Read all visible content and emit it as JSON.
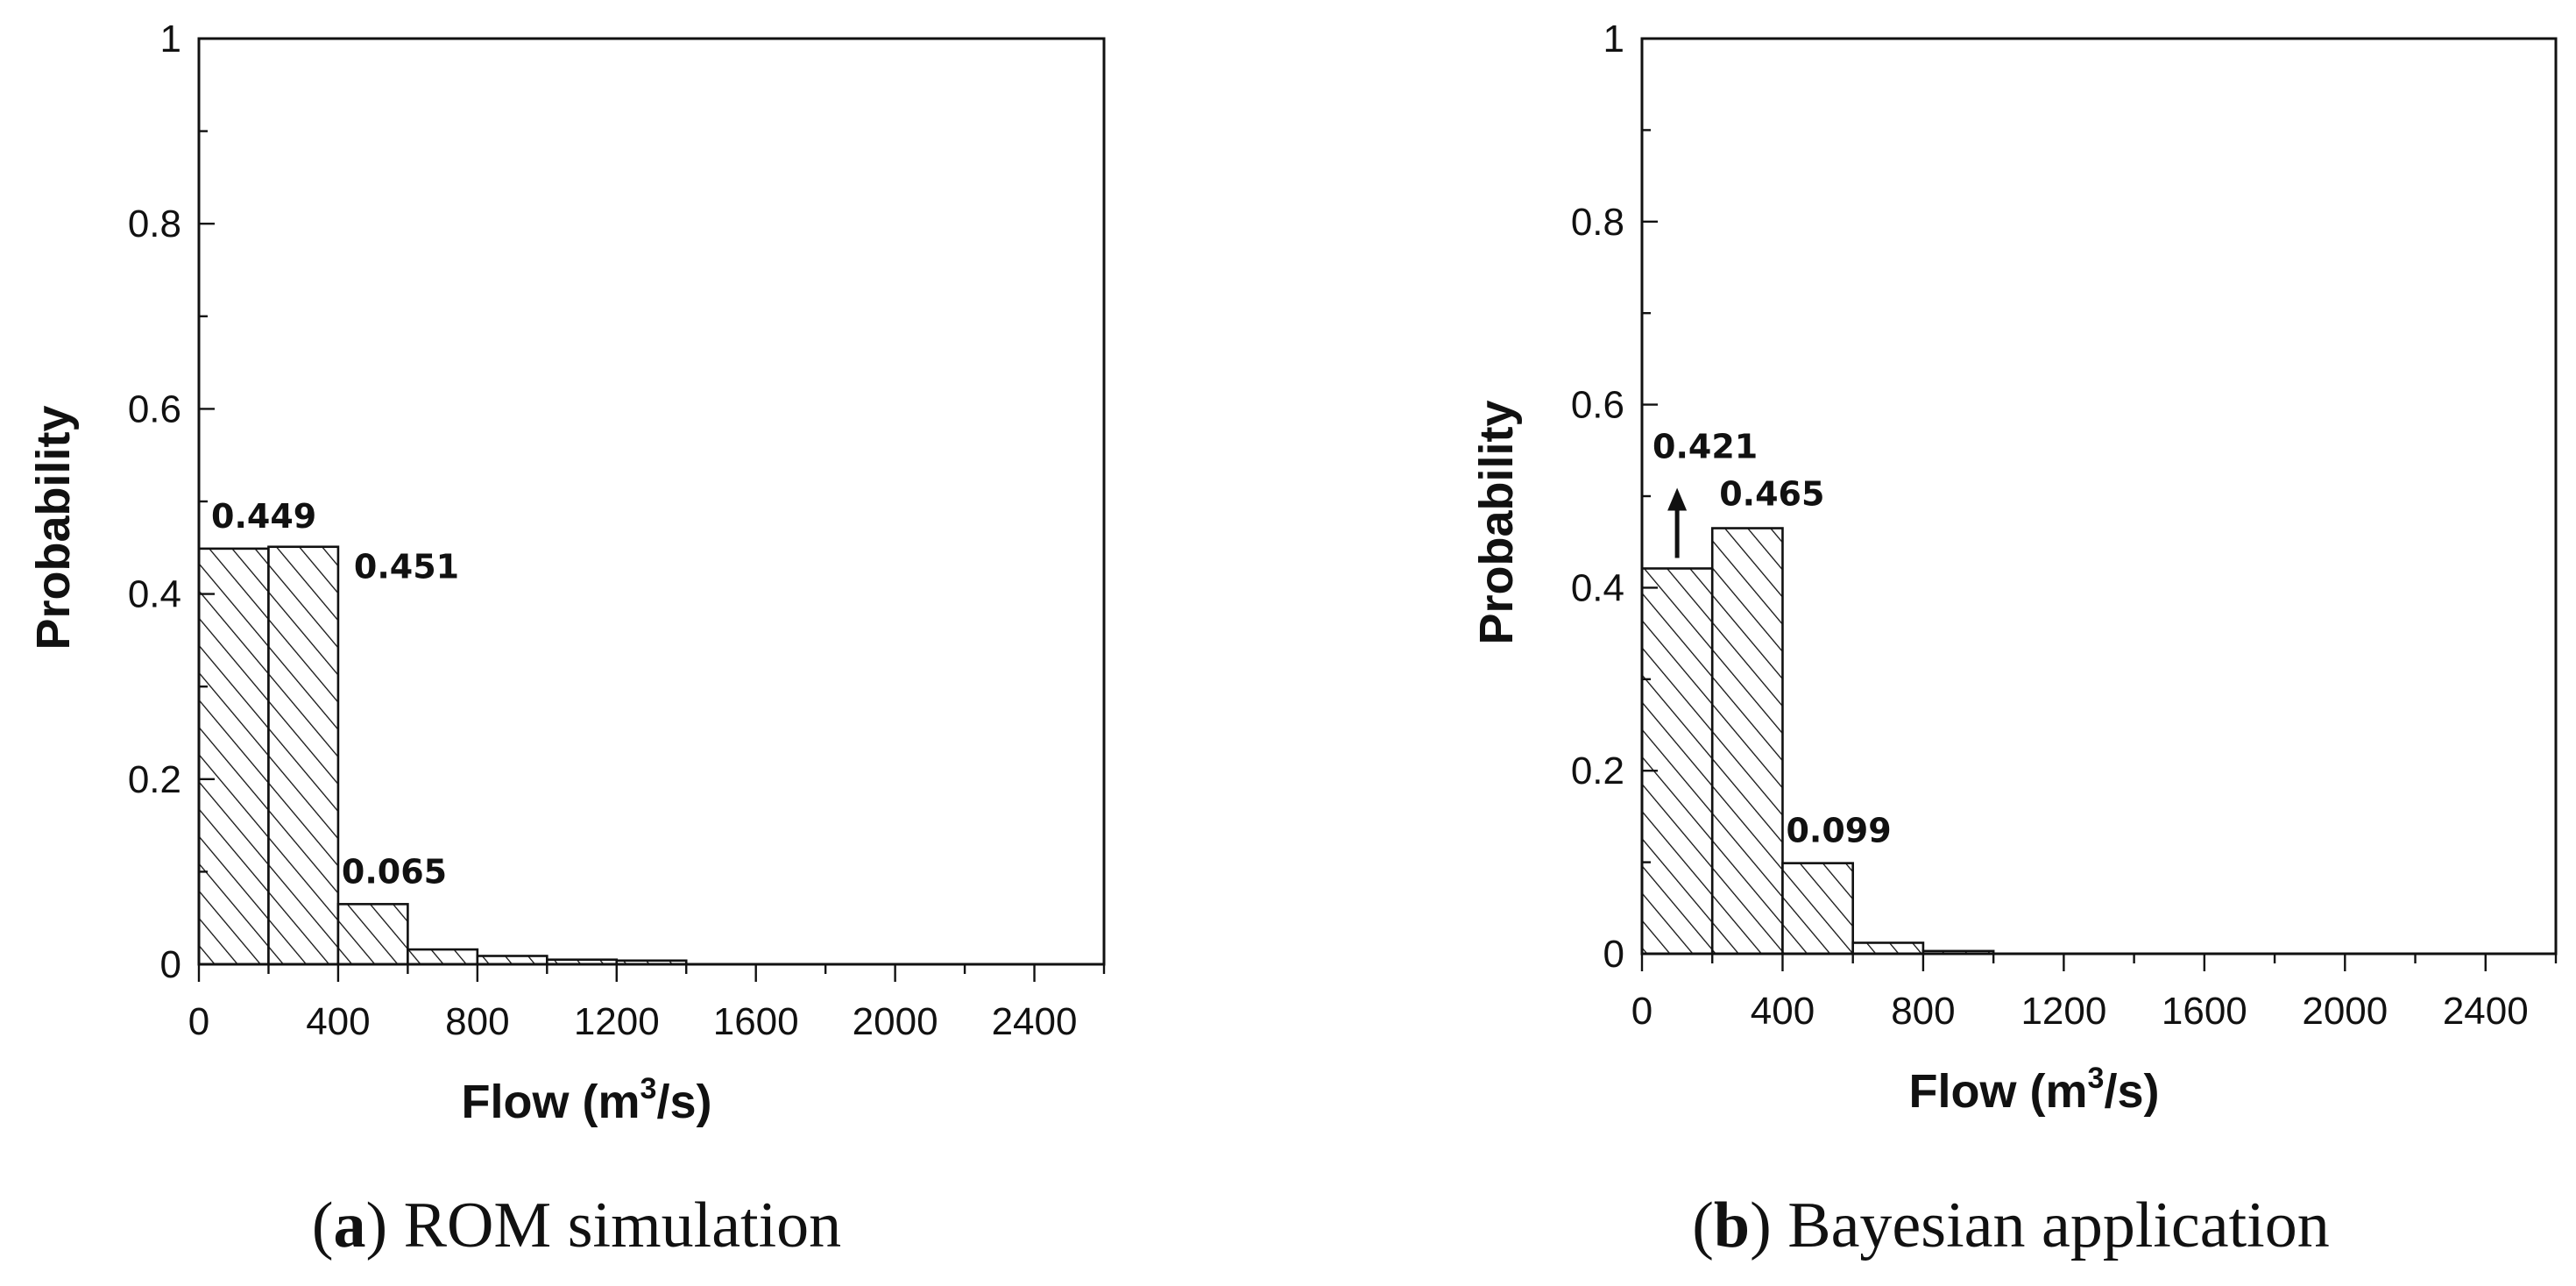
{
  "chart_data": [
    {
      "type": "bar",
      "caption_letter": "a",
      "caption_text": "ROM simulation",
      "xlabel": "Flow (m",
      "xlabel_sup": "3",
      "xlabel_tail": "/s)",
      "ylabel": "Probability",
      "xlim": [
        0,
        2600
      ],
      "ylim": [
        0,
        1
      ],
      "xticks": [
        0,
        400,
        800,
        1200,
        1600,
        2000,
        2400
      ],
      "yticks": [
        0,
        0.2,
        0.4,
        0.6,
        0.8,
        1
      ],
      "ytick_labels": [
        "0",
        "0.2",
        "0.4",
        "0.6",
        "0.8",
        "1"
      ],
      "bin_width": 200,
      "bins": [
        {
          "start": 0,
          "value": 0.449
        },
        {
          "start": 200,
          "value": 0.451
        },
        {
          "start": 400,
          "value": 0.065
        },
        {
          "start": 600,
          "value": 0.016
        },
        {
          "start": 800,
          "value": 0.009
        },
        {
          "start": 1000,
          "value": 0.005
        },
        {
          "start": 1200,
          "value": 0.004
        }
      ],
      "data_labels": [
        {
          "text": "0.449",
          "bin": 0
        },
        {
          "text": "0.451",
          "bin": 1
        },
        {
          "text": "0.065",
          "bin": 2
        }
      ],
      "arrow": false,
      "hatch": "diagonal"
    },
    {
      "type": "bar",
      "caption_letter": "b",
      "caption_text": "Bayesian application",
      "xlabel": "Flow (m",
      "xlabel_sup": "3",
      "xlabel_tail": "/s)",
      "ylabel": "Probability",
      "xlim": [
        0,
        2600
      ],
      "ylim": [
        0,
        1
      ],
      "xticks": [
        0,
        400,
        800,
        1200,
        1600,
        2000,
        2400
      ],
      "yticks": [
        0,
        0.2,
        0.4,
        0.6,
        0.8,
        1
      ],
      "ytick_labels": [
        "0",
        "0.2",
        "0.4",
        "0.6",
        "0.8",
        "1"
      ],
      "bin_width": 200,
      "bins": [
        {
          "start": 0,
          "value": 0.421
        },
        {
          "start": 200,
          "value": 0.465
        },
        {
          "start": 400,
          "value": 0.099
        },
        {
          "start": 600,
          "value": 0.012
        },
        {
          "start": 800,
          "value": 0.003
        }
      ],
      "data_labels": [
        {
          "text": "0.421",
          "bin": 0
        },
        {
          "text": "0.465",
          "bin": 1
        },
        {
          "text": "0.099",
          "bin": 2
        }
      ],
      "arrow": true,
      "hatch": "diagonal"
    }
  ],
  "colors": {
    "ink": "#111111",
    "background": "#ffffff"
  }
}
